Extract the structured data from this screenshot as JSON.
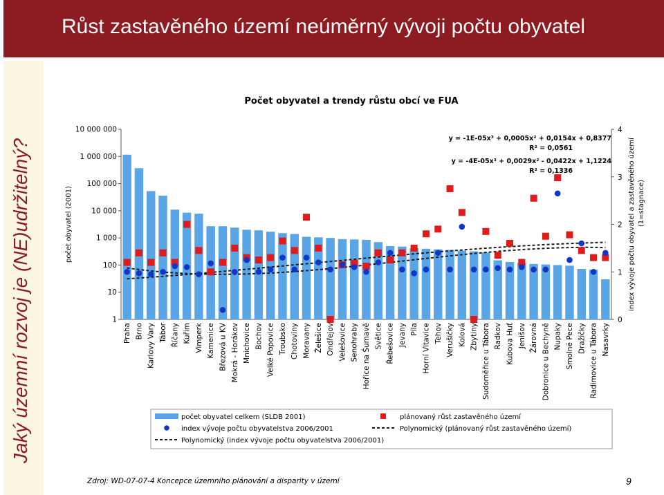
{
  "slide": {
    "title": "Růst zastavěného území neúměrný vývoji počtu obyvatel",
    "side_title": "Jaký územní rozvoj je (NE)udržitelný?",
    "source": "Zdroj: WD-07-07-4 Koncepce územního plánování a disparity v území",
    "page": "9"
  },
  "colors": {
    "title_bar": "#8c1b22",
    "bar": "#5aa5e6",
    "square": "#e01b1b",
    "dot": "#1136c4",
    "trend": "#1a1a1a"
  },
  "chart_data": {
    "type": "bar",
    "title": "Počet obyvatel a trendy růstu obcí ve FUA",
    "ylabel": "počet obyvatel (2001)",
    "y2label": "index vývoje počtu obyvatel a zastavěného území",
    "y2label_note": "(1=stagnace)",
    "y_scale": "log",
    "ylim": [
      1,
      10000000
    ],
    "y2lim": [
      0,
      4
    ],
    "y_ticks": [
      "1",
      "10",
      "100",
      "1 000",
      "10 000",
      "100 000",
      "1 000 000",
      "10 000 000"
    ],
    "y2_ticks": [
      "0",
      "1",
      "2",
      "3",
      "4"
    ],
    "categories": [
      "Praha",
      "Brno",
      "Karlovy Vary",
      "Tábor",
      "Říčany",
      "Kuřim",
      "Vimperk",
      "Kamenice",
      "Březová u KV",
      "Mokrá - Horákov",
      "Mnichovice",
      "Bochov",
      "Velké Popovice",
      "Troubsko",
      "Chotoviny",
      "Moravany",
      "Želešice",
      "Ondřejov",
      "Velešovice",
      "Senohraby",
      "Hořice na Šumavě",
      "Světice",
      "Řebešovice",
      "Jevany",
      "Píla",
      "Horní Vltavice",
      "Tehov",
      "Verušičky",
      "Kolová",
      "Zbytiny",
      "Sudoměřice u Tábora",
      "Radkov",
      "Kubova Huť",
      "Jenišov",
      "Žárovná",
      "Dobronice u Bechyně",
      "Nupaky",
      "Smolné Pece",
      "Dražičky",
      "Radimovice u Tábora",
      "Nasavrky"
    ],
    "series": [
      {
        "name": "počet obyvatel celkem (SLDB 2001)",
        "kind": "bar",
        "axis": "left",
        "values": [
          1160000,
          370000,
          53000,
          36000,
          11000,
          8500,
          7800,
          2700,
          2700,
          2400,
          2000,
          1900,
          1700,
          1500,
          1400,
          1100,
          1050,
          1000,
          900,
          880,
          850,
          700,
          500,
          480,
          420,
          400,
          380,
          360,
          340,
          320,
          290,
          150,
          130,
          120,
          110,
          105,
          100,
          95,
          72,
          68,
          30
        ]
      },
      {
        "name": "plánovaný růst zastavěného území",
        "kind": "marker",
        "marker": "square",
        "axis": "right",
        "values": [
          1.2,
          1.4,
          1.2,
          1.4,
          1.2,
          2.0,
          1.45,
          1.0,
          1.2,
          1.5,
          1.3,
          1.25,
          1.3,
          1.65,
          1.45,
          2.15,
          1.5,
          0.0,
          1.15,
          1.18,
          1.12,
          1.4,
          1.25,
          1.4,
          1.5,
          1.8,
          1.9,
          2.75,
          2.25,
          0.0,
          1.85,
          1.35,
          1.6,
          1.2,
          2.55,
          1.75,
          2.98,
          1.78,
          1.45,
          1.3,
          1.3
        ]
      },
      {
        "name": "index vývoje počtu obyvatelstva 2006/2001",
        "kind": "marker",
        "marker": "dot",
        "axis": "right",
        "values": [
          1.0,
          0.97,
          0.95,
          1.0,
          1.12,
          1.1,
          0.95,
          1.18,
          0.2,
          1.0,
          1.25,
          1.0,
          1.05,
          1.3,
          1.05,
          1.3,
          1.2,
          1.05,
          1.15,
          1.1,
          1.0,
          1.2,
          1.4,
          1.05,
          0.97,
          1.05,
          1.4,
          1.05,
          1.95,
          1.05,
          1.05,
          1.08,
          1.05,
          1.1,
          1.05,
          1.05,
          2.65,
          1.25,
          1.6,
          1.0,
          1.4
        ]
      },
      {
        "name": "Polynomický (index vývoje počtu obyvatelstva 2006/2001)",
        "kind": "trendline",
        "axis": "right",
        "equation": "y = -4E-05x³ + 0,0029x² - 0,0422x + 1,1224",
        "r2": "R² = 0,1336"
      },
      {
        "name": "Polynomický (plánovaný růst zastavěného území)",
        "kind": "trendline",
        "axis": "right",
        "equation": "y = -1E-05x³ + 0,0005x² + 0,0154x + 0,8377",
        "r2": "R² = 0,0561"
      }
    ],
    "grid": false,
    "legend": "bottom"
  }
}
